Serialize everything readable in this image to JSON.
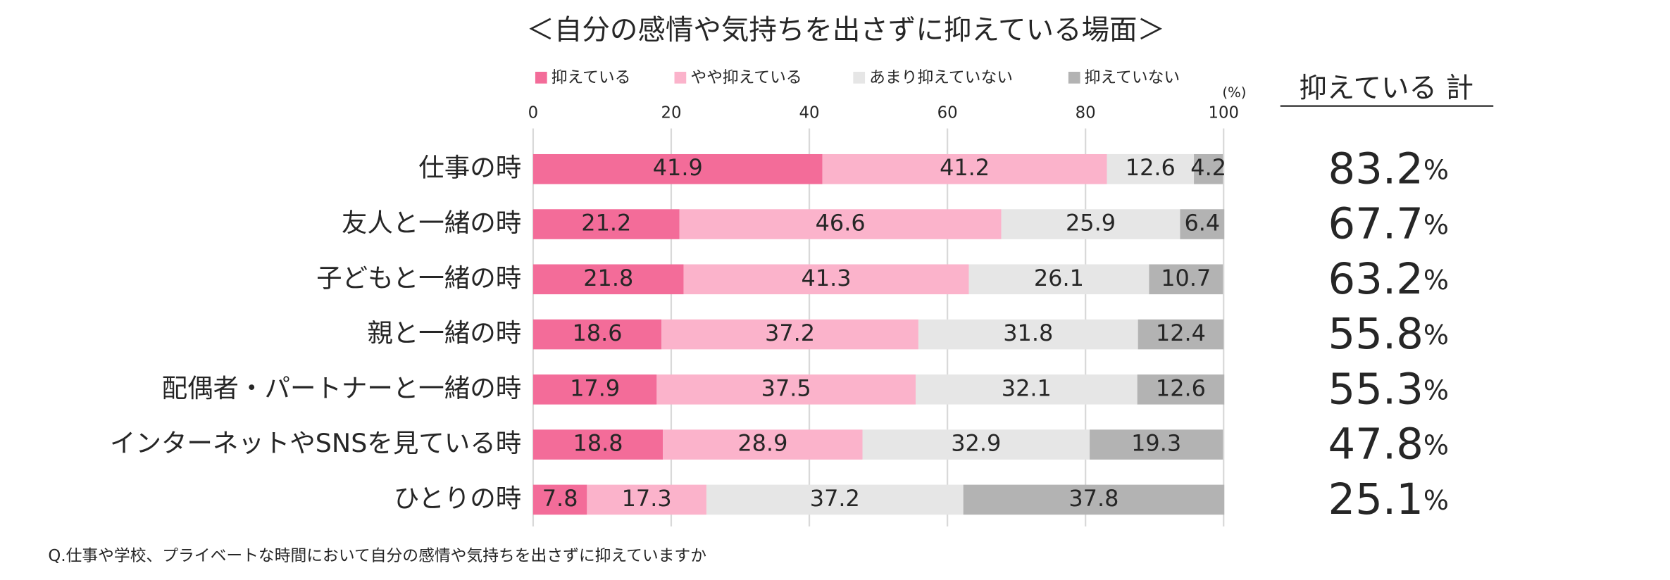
{
  "chart_data": {
    "type": "bar",
    "orientation": "horizontal",
    "stacked": true,
    "title": "＜自分の感情や気持ちを出さずに抑えている場面＞",
    "unit_label": "(%)",
    "categories": [
      "仕事の時",
      "友人と一緒の時",
      "子どもと一緒の時",
      "親と一緒の時",
      "配偶者・パートナーと一緒の時",
      "インターネットやSNSを見ている時",
      "ひとりの時"
    ],
    "series": [
      {
        "name": "抑えている",
        "color": "#f36c99",
        "values": [
          41.9,
          21.2,
          21.8,
          18.6,
          17.9,
          18.8,
          7.8
        ]
      },
      {
        "name": "やや抑えている",
        "color": "#fbb3cb",
        "values": [
          41.2,
          46.6,
          41.3,
          37.2,
          37.5,
          28.9,
          17.3
        ]
      },
      {
        "name": "あまり抑えていない",
        "color": "#e6e6e6",
        "values": [
          12.6,
          25.9,
          26.1,
          31.8,
          32.1,
          32.9,
          37.2
        ]
      },
      {
        "name": "抑えていない",
        "color": "#b3b3b3",
        "values": [
          4.2,
          6.4,
          10.7,
          12.4,
          12.6,
          19.3,
          37.8
        ]
      }
    ],
    "xlim": [
      0,
      100
    ],
    "xticks": [
      0,
      20,
      40,
      60,
      80,
      100
    ],
    "grid": true,
    "legend": "top",
    "totals": {
      "title": "抑えている 計",
      "values": [
        83.2,
        67.7,
        63.2,
        55.8,
        55.3,
        47.8,
        25.1
      ],
      "unit": "%"
    },
    "footnote": "Q.仕事や学校、プライベートな時間において自分の感情や気持ちを出さずに抑えていますか"
  }
}
